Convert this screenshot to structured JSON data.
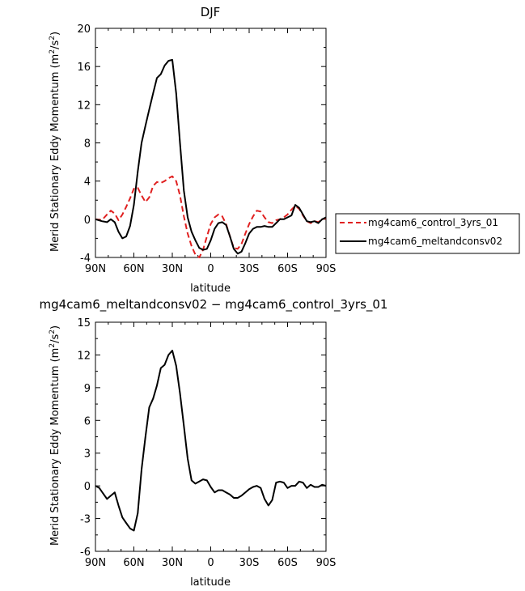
{
  "chart_data": [
    {
      "type": "line",
      "title": "DJF",
      "xlabel": "latitude",
      "ylabel": "Merid Stationary Eddy Momentum (m²/s²)",
      "ylabel_text": "Merid Stationary Eddy Momentum (m",
      "ylabel_sup": "2",
      "ylabel_tail": "/s",
      "ylabel_sup2": "2",
      "ylabel_close": ")",
      "xlim": [
        -90,
        90
      ],
      "ylim": [
        -4,
        20
      ],
      "xticks": [
        -90,
        -60,
        -30,
        0,
        30,
        60,
        90
      ],
      "xtick_labels": [
        "90N",
        "60N",
        "30N",
        "0",
        "30S",
        "60S",
        "90S"
      ],
      "yticks": [
        -4,
        0,
        4,
        8,
        12,
        16,
        20
      ],
      "ytick_labels": [
        "-4",
        "0",
        "4",
        "8",
        "12",
        "16",
        "20"
      ],
      "legend_position": "right",
      "series": [
        {
          "name": "mg4cam6_control_3yrs_01",
          "color": "#e02020",
          "dash": "dashed",
          "x": [
            -90,
            -85,
            -81,
            -78,
            -75,
            -72,
            -69,
            -66,
            -63,
            -60,
            -57,
            -54,
            -51,
            -48,
            -45,
            -42,
            -39,
            -36,
            -33,
            -30,
            -27,
            -24,
            -21,
            -18,
            -15,
            -12,
            -9,
            -6,
            -3,
            0,
            3,
            6,
            9,
            12,
            15,
            18,
            21,
            24,
            27,
            30,
            33,
            36,
            39,
            42,
            45,
            48,
            51,
            54,
            57,
            60,
            63,
            66,
            69,
            72,
            75,
            78,
            81,
            84,
            87,
            90
          ],
          "y": [
            0.0,
            -0.1,
            0.5,
            0.9,
            0.6,
            -0.1,
            0.5,
            1.3,
            2.2,
            3.2,
            3.3,
            2.5,
            1.8,
            2.3,
            3.5,
            3.9,
            3.8,
            4.0,
            4.3,
            4.5,
            4.0,
            2.5,
            0.3,
            -1.5,
            -2.8,
            -3.7,
            -4.0,
            -3.2,
            -1.8,
            -0.5,
            0.2,
            0.5,
            0.3,
            -0.5,
            -1.8,
            -3.0,
            -3.1,
            -2.6,
            -1.5,
            -0.5,
            0.3,
            0.9,
            0.8,
            0.2,
            -0.3,
            -0.4,
            -0.1,
            0.0,
            0.2,
            0.5,
            1.0,
            1.4,
            1.1,
            0.4,
            -0.2,
            -0.4,
            -0.2,
            -0.3,
            0.0,
            0.1
          ]
        },
        {
          "name": "mg4cam6_meltandconsv02",
          "color": "#000000",
          "dash": "solid",
          "x": [
            -90,
            -85,
            -81,
            -78,
            -75,
            -72,
            -69,
            -66,
            -63,
            -60,
            -57,
            -54,
            -51,
            -48,
            -45,
            -42,
            -39,
            -36,
            -33,
            -30,
            -27,
            -24,
            -21,
            -18,
            -15,
            -12,
            -9,
            -6,
            -3,
            0,
            3,
            6,
            9,
            12,
            15,
            18,
            21,
            24,
            27,
            30,
            33,
            36,
            39,
            42,
            45,
            48,
            51,
            54,
            57,
            60,
            63,
            66,
            69,
            72,
            75,
            78,
            81,
            84,
            87,
            90
          ],
          "y": [
            0.0,
            -0.2,
            -0.3,
            0.0,
            -0.3,
            -1.3,
            -2.0,
            -1.8,
            -0.7,
            1.5,
            5.0,
            8.0,
            9.8,
            11.5,
            13.2,
            14.8,
            15.2,
            16.1,
            16.6,
            16.7,
            13.2,
            8.0,
            3.0,
            0.2,
            -1.3,
            -2.2,
            -3.0,
            -3.2,
            -3.1,
            -2.2,
            -1.0,
            -0.4,
            -0.3,
            -0.6,
            -1.8,
            -3.1,
            -3.6,
            -3.4,
            -2.5,
            -1.5,
            -1.0,
            -0.8,
            -0.8,
            -0.7,
            -0.8,
            -0.8,
            -0.4,
            0.0,
            0.0,
            0.2,
            0.4,
            1.5,
            1.2,
            0.5,
            -0.2,
            -0.3,
            -0.2,
            -0.4,
            0.0,
            0.2
          ]
        }
      ]
    },
    {
      "type": "line",
      "title": "mg4cam6_meltandconsv02 − mg4cam6_control_3yrs_01",
      "xlabel": "latitude",
      "ylabel": "Merid Stationary Eddy Momentum (m²/s²)",
      "ylabel_text": "Merid Stationary Eddy Momentum (m",
      "ylabel_sup": "2",
      "ylabel_tail": "/s",
      "ylabel_sup2": "2",
      "ylabel_close": ")",
      "xlim": [
        -90,
        90
      ],
      "ylim": [
        -6,
        15
      ],
      "xticks": [
        -90,
        -60,
        -30,
        0,
        30,
        60,
        90
      ],
      "xtick_labels": [
        "90N",
        "60N",
        "30N",
        "0",
        "30S",
        "60S",
        "90S"
      ],
      "yticks": [
        -6,
        -3,
        0,
        3,
        6,
        9,
        12,
        15
      ],
      "ytick_labels": [
        "-6",
        "-3",
        "0",
        "3",
        "6",
        "9",
        "12",
        "15"
      ],
      "series": [
        {
          "color": "#000000",
          "dash": "solid",
          "x": [
            -90,
            -87,
            -84,
            -81,
            -78,
            -75,
            -72,
            -69,
            -66,
            -63,
            -60,
            -57,
            -54,
            -51,
            -48,
            -45,
            -42,
            -39,
            -36,
            -33,
            -30,
            -27,
            -24,
            -21,
            -18,
            -15,
            -12,
            -9,
            -6,
            -3,
            0,
            3,
            6,
            9,
            12,
            15,
            18,
            21,
            24,
            27,
            30,
            33,
            36,
            39,
            42,
            45,
            48,
            51,
            54,
            57,
            60,
            63,
            66,
            69,
            72,
            75,
            78,
            81,
            84,
            87,
            90
          ],
          "y": [
            0.0,
            -0.2,
            -0.7,
            -1.2,
            -0.9,
            -0.6,
            -1.8,
            -2.9,
            -3.4,
            -3.9,
            -4.1,
            -2.5,
            1.5,
            4.5,
            7.2,
            8.0,
            9.2,
            10.8,
            11.1,
            12.0,
            12.4,
            11.0,
            8.5,
            5.5,
            2.5,
            0.5,
            0.2,
            0.4,
            0.6,
            0.5,
            -0.1,
            -0.6,
            -0.4,
            -0.4,
            -0.6,
            -0.8,
            -1.1,
            -1.1,
            -0.9,
            -0.6,
            -0.3,
            -0.1,
            0.0,
            -0.2,
            -1.2,
            -1.8,
            -1.3,
            0.3,
            0.4,
            0.3,
            -0.2,
            0.0,
            0.0,
            0.4,
            0.3,
            -0.2,
            0.1,
            -0.1,
            -0.1,
            0.1,
            0.0
          ]
        }
      ]
    }
  ]
}
